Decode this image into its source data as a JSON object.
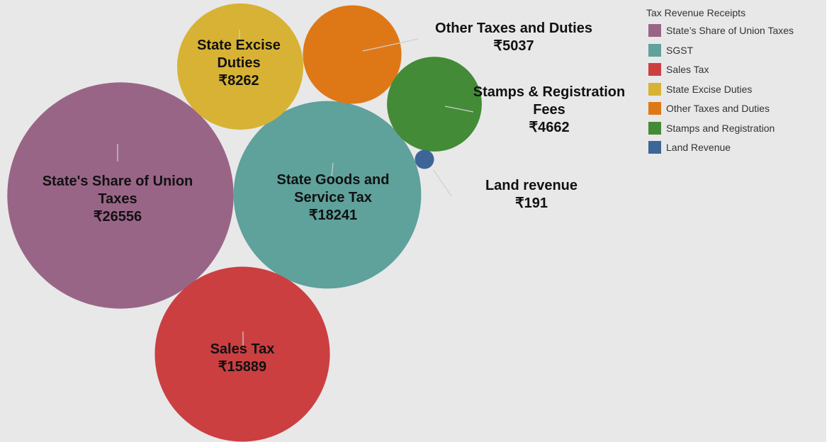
{
  "chart_data": {
    "type": "packed_bubble",
    "legend_title": "Tax Revenue Receipts",
    "categories": [
      "State's Share of Union Taxes",
      "State Goods and Service Tax",
      "Sales Tax",
      "State Excise Duties",
      "Other Taxes and Duties",
      "Stamps & Registration Fees",
      "Land revenue"
    ],
    "legend_labels": [
      "State’s Share of Union Taxes",
      "SGST",
      "Sales Tax",
      "State Excise Duties",
      "Other Taxes and Duties",
      "Stamps and Registration",
      "Land Revenue"
    ],
    "values": [
      26556,
      18241,
      15889,
      8262,
      5037,
      4662,
      191
    ],
    "value_labels": [
      "₹26556",
      "₹18241",
      "₹15889",
      "₹8262",
      "₹5037",
      "₹4662",
      "₹191"
    ],
    "colors": [
      "#996587",
      "#5fa19b",
      "#cb3f41",
      "#d8b234",
      "#de7817",
      "#438b37",
      "#3d6696"
    ]
  }
}
